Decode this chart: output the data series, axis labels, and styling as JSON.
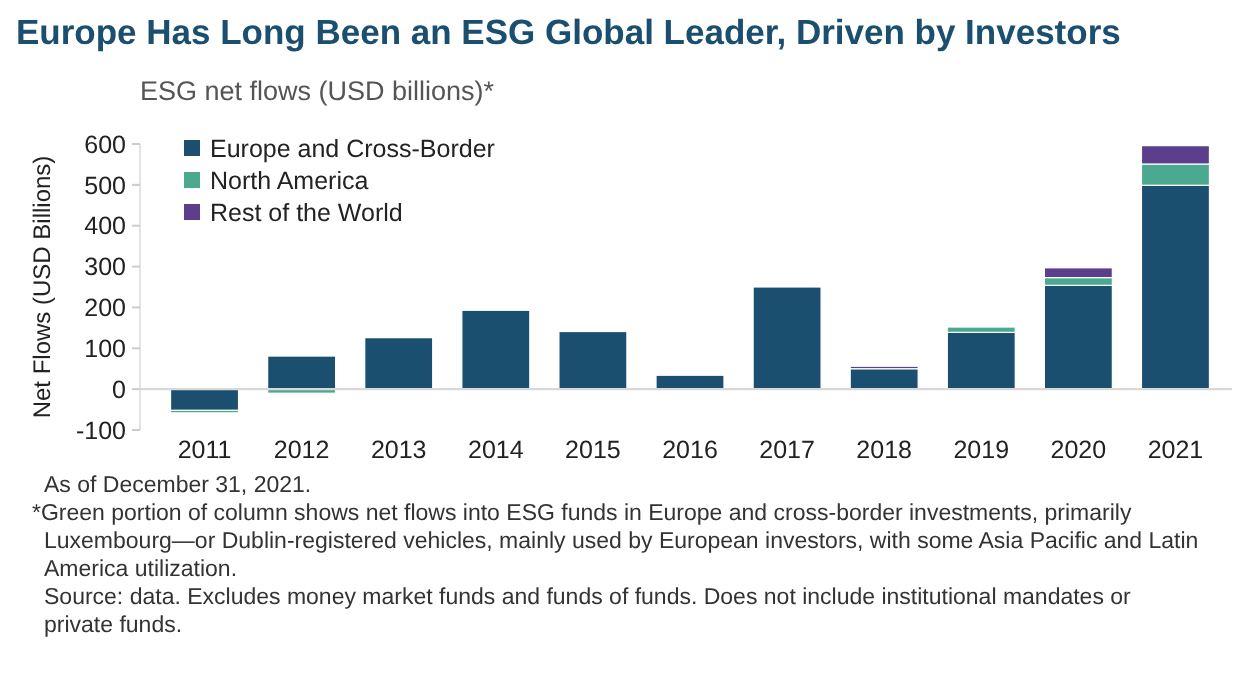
{
  "chart_data": {
    "type": "bar",
    "stacked": true,
    "title": "Europe Has Long Been an ESG Global Leader, Driven by Investors",
    "subtitle": "ESG net flows (USD billions)*",
    "ylabel": "Net Flows (USD Billions)",
    "categories": [
      "2011",
      "2012",
      "2013",
      "2014",
      "2015",
      "2016",
      "2017",
      "2018",
      "2019",
      "2020",
      "2021"
    ],
    "series": [
      {
        "name": "Europe and Cross-Border",
        "color": "#1b4f6f",
        "values": [
          -52,
          81,
          126,
          193,
          141,
          34,
          250,
          50,
          139,
          254,
          499
        ]
      },
      {
        "name": "North America",
        "color": "#4aa98f",
        "values": [
          -6,
          -10,
          null,
          null,
          null,
          null,
          null,
          null,
          13,
          19,
          52
        ]
      },
      {
        "name": "Rest of the World",
        "color": "#5b3f8c",
        "values": [
          null,
          null,
          null,
          null,
          null,
          null,
          null,
          6,
          null,
          24,
          45
        ]
      }
    ],
    "ylim": [
      -100,
      600
    ],
    "yticks": [
      -100,
      0,
      100,
      200,
      300,
      400,
      500,
      600
    ],
    "grid": false,
    "legend": "top left",
    "annotations": [
      "As of December 31, 2021.",
      "*Green portion of column shows net flows into ESG funds in Europe and cross-border investments, primarily Luxembourg—or Dublin-registered vehicles, mainly used by European investors, with some Asia Pacific and Latin America utilization.",
      "Source: data. Excludes money market funds and funds of funds. Does not include institutional mandates or private funds."
    ]
  }
}
